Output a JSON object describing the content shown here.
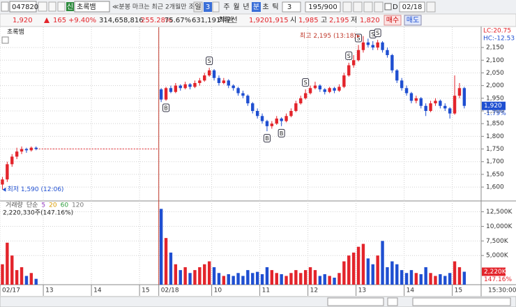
{
  "toolbar": {
    "code": "047820",
    "badge": "신",
    "name": "초록뱀",
    "notice": "≪분봉 마크는 최근 2개월만 조회",
    "day": "일",
    "day_count": "3",
    "week": "주",
    "month": "월",
    "year": "년",
    "minute": "분",
    "second": "초",
    "tick": "틱",
    "interval": "3",
    "count": "195/900",
    "d_label": "D",
    "date": "02/18"
  },
  "quote": {
    "price": "1,920",
    "change": "165",
    "change_rate": "+9.40%",
    "volume": "314,658,816",
    "turnover_rate": "255.28%",
    "ratio": "75.67%",
    "amount": "631,191백만",
    "best_label": "최우선",
    "ask": "1,920",
    "bid": "1,915",
    "open_label": "시",
    "open": "1,985",
    "high_label": "고",
    "high": "2,195",
    "low_label": "저",
    "low": "1,820",
    "buy": "매수",
    "sell": "매도"
  },
  "chart_data": [
    {
      "type": "candlestick",
      "legend": "초록뱀",
      "up_color": "#e3242b",
      "down_color": "#1f4fd1",
      "open": [
        1610,
        1630,
        1690,
        1720,
        1740,
        1750,
        1745,
        1755,
        null,
        null,
        null,
        null,
        null,
        null,
        null,
        null,
        null,
        null,
        null,
        null,
        null,
        null,
        null,
        null,
        null,
        null,
        null,
        null,
        null,
        null,
        null,
        null,
        null,
        1985,
        1945,
        1990,
        1975,
        2000,
        1990,
        2005,
        1995,
        2010,
        2020,
        2040,
        2060,
        2030,
        2010,
        2020,
        2000,
        1990,
        1970,
        1960,
        1930,
        1900,
        1880,
        1860,
        1840,
        1850,
        1870,
        1860,
        1880,
        1900,
        1930,
        1950,
        1970,
        1990,
        2000,
        1985,
        1975,
        1990,
        1980,
        1995,
        2040,
        2080,
        2100,
        2140,
        2170,
        2160,
        2150,
        2170,
        2140,
        2120,
        2060,
        2020,
        1990,
        1970,
        1940,
        1950,
        1920,
        1900,
        1930,
        1940,
        1920,
        1910,
        1890,
        1960,
        1990,
        null,
        null,
        null
      ],
      "high": [
        1640,
        1700,
        1730,
        1755,
        1760,
        1755,
        1760,
        1760,
        null,
        null,
        null,
        null,
        null,
        null,
        null,
        null,
        null,
        null,
        null,
        null,
        null,
        null,
        null,
        null,
        null,
        null,
        null,
        null,
        null,
        null,
        null,
        null,
        null,
        1990,
        1995,
        2000,
        2010,
        2005,
        2015,
        2010,
        2020,
        2030,
        2050,
        2070,
        2065,
        2040,
        2030,
        2025,
        2005,
        1995,
        1980,
        1965,
        1935,
        1910,
        1890,
        1865,
        1860,
        1880,
        1875,
        1890,
        1910,
        1940,
        1960,
        1985,
        2000,
        2015,
        2005,
        1990,
        1995,
        1995,
        2005,
        2050,
        2090,
        2120,
        2160,
        2195,
        2185,
        2175,
        2180,
        2175,
        2150,
        2125,
        2065,
        2030,
        2000,
        1975,
        1960,
        1955,
        1930,
        1940,
        1950,
        1945,
        1930,
        1915,
        2040,
        2010,
        1995,
        null,
        null,
        null
      ],
      "low": [
        1590,
        1620,
        1680,
        1710,
        1730,
        1735,
        1740,
        1745,
        null,
        null,
        null,
        null,
        null,
        null,
        null,
        null,
        null,
        null,
        null,
        null,
        null,
        null,
        null,
        null,
        null,
        null,
        null,
        null,
        null,
        null,
        null,
        null,
        null,
        1935,
        1940,
        1970,
        1970,
        1980,
        1985,
        1985,
        1990,
        2000,
        2015,
        2035,
        2020,
        2000,
        2005,
        1990,
        1980,
        1960,
        1950,
        1920,
        1890,
        1870,
        1850,
        1820,
        1830,
        1845,
        1840,
        1855,
        1875,
        1895,
        1925,
        1945,
        1965,
        1985,
        1975,
        1965,
        1970,
        1970,
        1975,
        1990,
        2035,
        2070,
        2095,
        2130,
        2150,
        2140,
        2140,
        2130,
        2110,
        2050,
        2010,
        1980,
        1960,
        1930,
        1930,
        1910,
        1880,
        1895,
        1920,
        1910,
        1900,
        1870,
        1885,
        1950,
        1910,
        null,
        null,
        null
      ],
      "close": [
        1630,
        1690,
        1720,
        1740,
        1750,
        1745,
        1755,
        1750,
        null,
        null,
        null,
        null,
        null,
        null,
        null,
        null,
        null,
        null,
        null,
        null,
        null,
        null,
        null,
        null,
        null,
        null,
        null,
        null,
        null,
        null,
        null,
        null,
        null,
        1945,
        1990,
        1975,
        2000,
        1990,
        2005,
        1995,
        2010,
        2020,
        2040,
        2060,
        2030,
        2010,
        2020,
        2000,
        1990,
        1970,
        1960,
        1930,
        1900,
        1880,
        1860,
        1840,
        1850,
        1870,
        1860,
        1880,
        1900,
        1930,
        1950,
        1970,
        1990,
        2000,
        1985,
        1975,
        1990,
        1980,
        1995,
        2040,
        2080,
        2100,
        2140,
        2170,
        2160,
        2150,
        2170,
        2140,
        2120,
        2060,
        2020,
        1990,
        1970,
        1940,
        1950,
        1920,
        1900,
        1930,
        1940,
        1920,
        1910,
        1890,
        1960,
        1990,
        1920,
        null,
        null,
        null
      ],
      "signals": [
        null,
        null,
        null,
        null,
        null,
        null,
        null,
        null,
        null,
        null,
        null,
        null,
        null,
        null,
        null,
        null,
        null,
        null,
        null,
        null,
        null,
        null,
        null,
        null,
        null,
        null,
        null,
        null,
        null,
        null,
        null,
        null,
        null,
        null,
        "B",
        null,
        null,
        null,
        null,
        null,
        null,
        null,
        null,
        "S",
        null,
        null,
        null,
        null,
        null,
        null,
        null,
        null,
        null,
        null,
        null,
        "B",
        null,
        null,
        "B",
        null,
        null,
        null,
        null,
        "S",
        null,
        null,
        null,
        null,
        null,
        null,
        null,
        null,
        "S",
        null,
        "S",
        null,
        null,
        "S",
        "S",
        null,
        null,
        null,
        null,
        null,
        null,
        null,
        null,
        null,
        null,
        null,
        null,
        null,
        null,
        null,
        null,
        null,
        null,
        null,
        null,
        null
      ],
      "ylim": [
        1548,
        2230
      ],
      "yticks": [
        {
          "value": 1600,
          "label": "1,600"
        },
        {
          "value": 1650,
          "label": "1,650"
        },
        {
          "value": 1700,
          "label": "1,700"
        },
        {
          "value": 1750,
          "label": "1,750"
        },
        {
          "value": 1800,
          "label": "1,800"
        },
        {
          "value": 1850,
          "label": "1,850"
        },
        {
          "value": 1900,
          "label": "1,900"
        },
        {
          "value": 1950,
          "label": "1,950"
        },
        {
          "value": 2000,
          "label": "2,000"
        },
        {
          "value": 2050,
          "label": "2,050"
        },
        {
          "value": 2100,
          "label": "2,100"
        },
        {
          "value": 2150,
          "label": "2,150"
        }
      ],
      "lc_label": "LC:20.75",
      "hc_label": "HC:-12.53",
      "last_price": {
        "value": 1920,
        "label": "1,920"
      },
      "last_change": "-1.79%",
      "high_note": "최고 2,195 (13:18)",
      "low_note": "최저 1,590 (12:06)"
    },
    {
      "type": "bar",
      "legend": [
        "거래량",
        "단순",
        "5",
        "20",
        "60",
        "120"
      ],
      "legend_colors": [
        "#555555",
        "#555555",
        "#9b3fc7",
        "#d99a00",
        "#2e9e3e",
        "#777777"
      ],
      "summary": "2,220,330주(147.16%)",
      "categories": [
        "02/17",
        null,
        null,
        null,
        null,
        null,
        null,
        null,
        null,
        "13",
        null,
        null,
        null,
        null,
        null,
        null,
        null,
        null,
        null,
        "14",
        null,
        null,
        null,
        null,
        null,
        null,
        null,
        null,
        null,
        "15",
        null,
        null,
        null,
        "02/18",
        null,
        null,
        null,
        null,
        null,
        null,
        null,
        null,
        null,
        null,
        "10",
        null,
        null,
        null,
        null,
        null,
        null,
        null,
        null,
        null,
        "11",
        null,
        null,
        null,
        null,
        null,
        null,
        null,
        null,
        null,
        "12",
        null,
        null,
        null,
        null,
        null,
        null,
        null,
        null,
        null,
        "13",
        null,
        null,
        null,
        null,
        null,
        null,
        null,
        null,
        null,
        "14",
        null,
        null,
        null,
        null,
        null,
        null,
        null,
        null,
        null,
        "15",
        null,
        null,
        null,
        null,
        null
      ],
      "values": [
        3500,
        7200,
        5000,
        2500,
        3000,
        1500,
        2000,
        1000,
        null,
        null,
        null,
        null,
        null,
        null,
        null,
        null,
        null,
        null,
        null,
        null,
        null,
        null,
        null,
        null,
        null,
        null,
        null,
        null,
        null,
        null,
        null,
        null,
        null,
        13000,
        8000,
        5500,
        3500,
        2500,
        3000,
        2000,
        2500,
        3000,
        3500,
        4000,
        3000,
        2000,
        1500,
        1800,
        1500,
        2000,
        1500,
        2500,
        2000,
        2200,
        1800,
        3000,
        2500,
        2000,
        1800,
        1500,
        2000,
        2500,
        2000,
        2500,
        3000,
        2500,
        1500,
        1800,
        1500,
        1200,
        2000,
        4000,
        5000,
        5500,
        6500,
        7000,
        4500,
        3500,
        5000,
        7500,
        3000,
        4000,
        3500,
        2500,
        2000,
        2500,
        2000,
        1800,
        3000,
        2000,
        1500,
        1800,
        1500,
        2000,
        4000,
        3000,
        2220,
        null,
        null,
        null
      ],
      "ylim": [
        0,
        14000
      ],
      "yticks": [
        {
          "value": 5000,
          "label": "5,000K"
        },
        {
          "value": 7500,
          "label": "7,500K"
        },
        {
          "value": 10000,
          "label": "10,000K"
        },
        {
          "value": 12500,
          "label": "12,500K"
        }
      ],
      "last_volume": {
        "value": 2220,
        "label": "2,220K"
      },
      "last_ratio": "147.16%",
      "time_label": "15:30:00"
    }
  ]
}
